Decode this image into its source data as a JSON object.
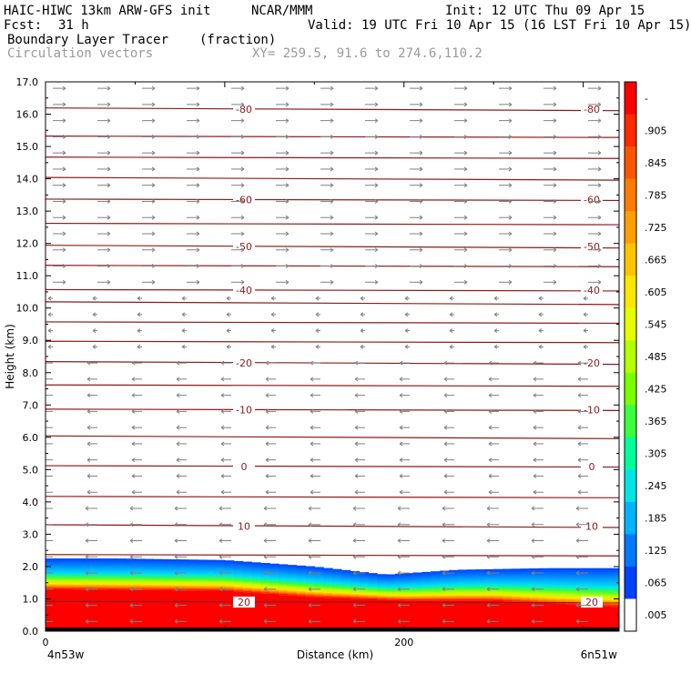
{
  "header": {
    "model": "HAIC-HIWC 13km ARW-GFS init",
    "org": "NCAR/MMM",
    "init": "Init: 12 UTC Thu 09 Apr 15",
    "fcst_label": "Fcst:",
    "fcst_value": "31 h",
    "valid": "Valid: 19 UTC Fri 10 Apr 15 (16 LST Fri 10 Apr 15)",
    "field": "Boundary Layer Tracer",
    "field_units": "(fraction)",
    "overlay": "Circulation vectors",
    "xy_range": "XY= 259.5, 91.6 to 274.6,110.2"
  },
  "chart_data": {
    "type": "heatmap",
    "title": "Boundary Layer Tracer",
    "ylabel": "Height (km)",
    "xlabel": "Distance (km)",
    "ylim": [
      0,
      17
    ],
    "xlim": [
      0,
      320
    ],
    "y_ticks": [
      "0.0",
      "1.0",
      "2.0",
      "3.0",
      "4.0",
      "5.0",
      "6.0",
      "7.0",
      "8.0",
      "9.0",
      "10.0",
      "11.0",
      "12.0",
      "13.0",
      "14.0",
      "15.0",
      "16.0",
      "17.0"
    ],
    "x_ticks": [
      {
        "value": 0,
        "label": "0"
      },
      {
        "value": 200,
        "label": "200"
      }
    ],
    "x_end_labels": {
      "left": "4n53w",
      "right": "6n51w"
    },
    "boundary_layer_top_km": [
      {
        "x": 0,
        "top": 2.25
      },
      {
        "x": 40,
        "top": 2.25
      },
      {
        "x": 100,
        "top": 2.2
      },
      {
        "x": 150,
        "top": 2.0
      },
      {
        "x": 190,
        "top": 1.75
      },
      {
        "x": 230,
        "top": 1.9
      },
      {
        "x": 280,
        "top": 1.95
      },
      {
        "x": 320,
        "top": 1.95
      }
    ],
    "saturated_top_km": [
      {
        "x": 0,
        "top": 1.3
      },
      {
        "x": 100,
        "top": 1.25
      },
      {
        "x": 150,
        "top": 1.05
      },
      {
        "x": 200,
        "top": 0.95
      },
      {
        "x": 250,
        "top": 0.95
      },
      {
        "x": 280,
        "top": 0.85
      },
      {
        "x": 320,
        "top": 0.75
      }
    ],
    "isotherms": [
      {
        "label": "-80",
        "height_km": 16.15
      },
      {
        "label": "",
        "height_km": 15.3
      },
      {
        "label": "",
        "height_km": 14.65
      },
      {
        "label": "",
        "height_km": 14.0
      },
      {
        "label": "-60",
        "height_km": 13.35
      },
      {
        "label": "",
        "height_km": 12.6
      },
      {
        "label": "-50",
        "height_km": 11.9
      },
      {
        "label": "",
        "height_km": 11.3
      },
      {
        "label": "-40",
        "height_km": 10.55
      },
      {
        "label": "",
        "height_km": 10.15
      },
      {
        "label": "",
        "height_km": 9.55
      },
      {
        "label": "",
        "height_km": 8.95
      },
      {
        "label": "-20",
        "height_km": 8.3
      },
      {
        "label": "",
        "height_km": 7.6
      },
      {
        "label": "-10",
        "height_km": 6.85
      },
      {
        "label": "",
        "height_km": 6.0
      },
      {
        "label": "0",
        "height_km": 5.1
      },
      {
        "label": "",
        "height_km": 4.15
      },
      {
        "label": "10",
        "height_km": 3.25
      },
      {
        "label": "",
        "height_km": 2.35
      },
      {
        "label": "20",
        "height_km": 0.9
      }
    ],
    "colorbar": {
      "labels": [
        "-",
        ".905",
        ".845",
        ".785",
        ".725",
        ".665",
        ".605",
        ".545",
        ".485",
        ".425",
        ".365",
        ".305",
        ".245",
        ".185",
        ".125",
        ".065",
        ".005"
      ],
      "colors": [
        "#ff0000",
        "#ff2a00",
        "#ff5500",
        "#ff7a00",
        "#ff9f00",
        "#ffc400",
        "#ffe600",
        "#e6ff00",
        "#b4ff00",
        "#7aff00",
        "#3cff3c",
        "#00ff9a",
        "#00e6e6",
        "#00b4ff",
        "#0078ff",
        "#0040ff",
        "#ffffff"
      ]
    },
    "vector_color": "#808080",
    "isotherm_color": "#8b1a1a"
  }
}
